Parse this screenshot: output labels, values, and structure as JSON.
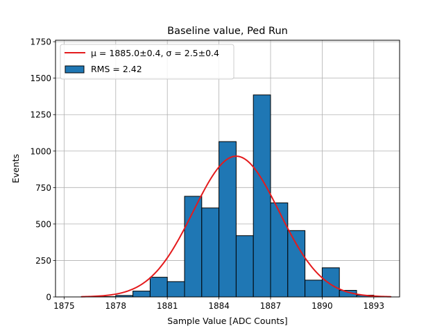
{
  "chart_data": {
    "type": "bar",
    "title": "Baseline value, Ped Run",
    "xlabel": "Sample Value [ADC Counts]",
    "ylabel": "Events",
    "xlim": [
      1874.5,
      1894.5
    ],
    "ylim": [
      0,
      1760
    ],
    "xticks": [
      1875,
      1878,
      1881,
      1884,
      1887,
      1890,
      1893
    ],
    "yticks": [
      0,
      250,
      500,
      750,
      1000,
      1250,
      1500,
      1750
    ],
    "grid": true,
    "legend_position": "top-left",
    "bin_width": 1,
    "bins": [
      {
        "x0": 1876,
        "value": 2
      },
      {
        "x0": 1877,
        "value": 2
      },
      {
        "x0": 1878,
        "value": 10
      },
      {
        "x0": 1879,
        "value": 40
      },
      {
        "x0": 1880,
        "value": 135
      },
      {
        "x0": 1881,
        "value": 105
      },
      {
        "x0": 1882,
        "value": 690
      },
      {
        "x0": 1883,
        "value": 610
      },
      {
        "x0": 1884,
        "value": 1065
      },
      {
        "x0": 1885,
        "value": 420
      },
      {
        "x0": 1886,
        "value": 1385
      },
      {
        "x0": 1887,
        "value": 645
      },
      {
        "x0": 1888,
        "value": 455
      },
      {
        "x0": 1889,
        "value": 115
      },
      {
        "x0": 1890,
        "value": 200
      },
      {
        "x0": 1891,
        "value": 45
      },
      {
        "x0": 1892,
        "value": 12
      },
      {
        "x0": 1893,
        "value": 2
      }
    ],
    "series": [
      {
        "name": "histogram",
        "label": "RMS = 2.42",
        "color": "#1f77b4"
      },
      {
        "name": "gaussian fit",
        "label": "μ = 1885.0±0.4, σ = 2.5±0.4",
        "color": "#e41a1c",
        "mu": 1885.0,
        "sigma": 2.5,
        "amplitude": 965,
        "x_range": [
          1876,
          1894
        ]
      }
    ]
  }
}
